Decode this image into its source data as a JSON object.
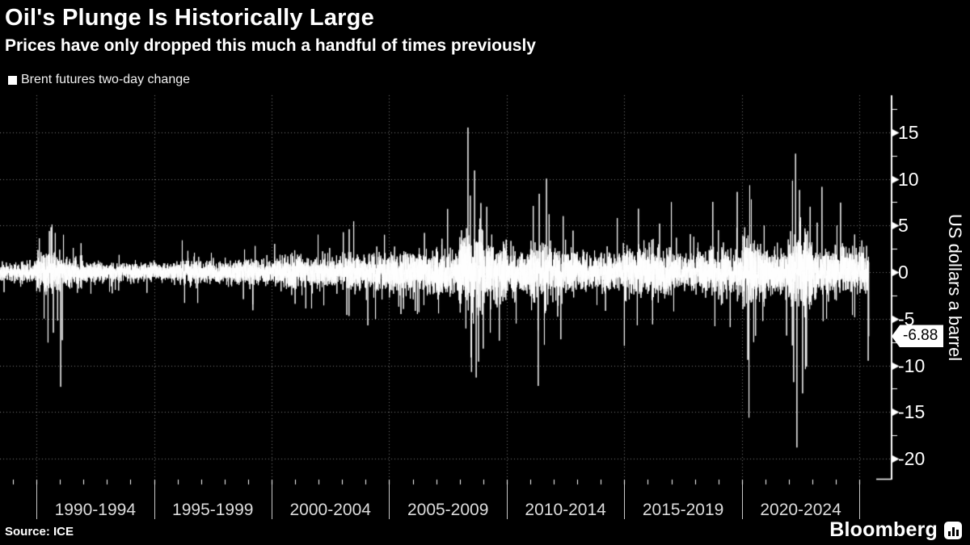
{
  "header": {
    "title": "Oil's Plunge Is Historically Large",
    "subtitle": "Prices have only dropped this much a handful of times previously"
  },
  "legend": {
    "marker": "square-swatch-icon",
    "label": "Brent futures two-day change"
  },
  "y_axis": {
    "label": "US dollars a barrel",
    "last_value_tag": "-6.88",
    "tag_arrow": "left-pointer-icon"
  },
  "footer": {
    "source": "Source: ICE",
    "brand": "Bloomberg",
    "brand_icon": "bar-chart-icon"
  },
  "colors": {
    "background": "#000000",
    "series": "#ffffff",
    "grid": "#787878",
    "axis": "#ffffff",
    "tick_label": "#ffffff",
    "x_label": "#dcdcdc",
    "separator": "#c9c9c9",
    "tag_bg": "#ffffff",
    "tag_text": "#000000"
  },
  "chart_data": {
    "type": "line",
    "title": "Oil's Plunge Is Historically Large",
    "subtitle": "Prices have only dropped this much a handful of times previously",
    "series_name": "Brent futures two-day change",
    "ylabel": "US dollars a barrel",
    "xlabel": "",
    "grid": "dotted",
    "legend_position": "top-left",
    "x_period_labels": [
      "1990-1994",
      "1995-1999",
      "2000-2004",
      "2005-2009",
      "2010-2014",
      "2015-2019",
      "2020-2024"
    ],
    "x_boundaries_years": [
      1990,
      1995,
      2000,
      2005,
      2010,
      2015,
      2020,
      2025
    ],
    "xlim": [
      1988.45,
      2026.33
    ],
    "ylim": [
      -22.16,
      18.96
    ],
    "y_major_ticks": [
      15,
      10,
      5,
      0,
      -5,
      -10,
      -15,
      -20
    ],
    "y_minor_step": 2.5,
    "data_x_start": 1988.45,
    "data_x_end": 2025.4,
    "points_per_year": 260,
    "seed": 20250407,
    "last_value": -6.88,
    "volatility_by_year": {
      "start_year": 1988,
      "sigma": [
        0.45,
        0.5,
        1.0,
        0.75,
        0.5,
        0.45,
        0.5,
        0.45,
        0.65,
        0.5,
        0.62,
        0.62,
        0.85,
        0.8,
        0.72,
        0.95,
        1.0,
        1.15,
        1.1,
        1.15,
        1.95,
        1.5,
        1.05,
        1.45,
        1.25,
        0.95,
        0.9,
        1.3,
        1.3,
        0.8,
        1.05,
        1.1,
        1.65,
        1.05,
        1.85,
        1.2,
        1.1,
        1.1
      ]
    },
    "spikes": [
      [
        1990.55,
        4.4
      ],
      [
        1990.62,
        4.8
      ],
      [
        1990.66,
        5.1
      ],
      [
        1990.72,
        -6.5
      ],
      [
        1990.8,
        4.2
      ],
      [
        1990.9,
        -5.2
      ],
      [
        1991.03,
        -12.3
      ],
      [
        1991.1,
        -7.3
      ],
      [
        1991.15,
        4.0
      ],
      [
        1996.2,
        3.4
      ],
      [
        1996.3,
        -3.3
      ],
      [
        1998.8,
        -2.9
      ],
      [
        1999.3,
        2.8
      ],
      [
        2001.0,
        -3.4
      ],
      [
        2001.7,
        -3.9
      ],
      [
        2003.2,
        -4.6
      ],
      [
        2003.3,
        4.6
      ],
      [
        2004.8,
        4.0
      ],
      [
        2005.5,
        -4.5
      ],
      [
        2006.5,
        4.2
      ],
      [
        2008.35,
        15.5
      ],
      [
        2008.45,
        8.2
      ],
      [
        2008.5,
        -10.7
      ],
      [
        2008.63,
        10.9
      ],
      [
        2008.7,
        -11.3
      ],
      [
        2008.8,
        -9.6
      ],
      [
        2008.9,
        7.4
      ],
      [
        2009.0,
        -8.2
      ],
      [
        2009.15,
        7.0
      ],
      [
        2009.3,
        -6.5
      ],
      [
        2010.4,
        -5.5
      ],
      [
        2011.34,
        -12.2
      ],
      [
        2011.38,
        8.4
      ],
      [
        2011.6,
        -7.8
      ],
      [
        2011.8,
        6.2
      ],
      [
        2012.3,
        -7.2
      ],
      [
        2012.4,
        6.0
      ],
      [
        2014.7,
        5.8
      ],
      [
        2015.0,
        -7.9
      ],
      [
        2015.55,
        -5.7
      ],
      [
        2015.6,
        6.8
      ],
      [
        2016.2,
        -5.6
      ],
      [
        2016.5,
        5.2
      ],
      [
        2017.0,
        7.5
      ],
      [
        2017.1,
        -4.2
      ],
      [
        2018.85,
        -5.8
      ],
      [
        2019.0,
        4.5
      ],
      [
        2019.5,
        -5.9
      ],
      [
        2019.8,
        8.6
      ],
      [
        2020.25,
        -9.4
      ],
      [
        2020.3,
        -15.6
      ],
      [
        2020.33,
        9.3
      ],
      [
        2020.4,
        7.8
      ],
      [
        2020.5,
        -7.5
      ],
      [
        2021.9,
        -6.8
      ],
      [
        2022.15,
        9.8
      ],
      [
        2022.2,
        -11.8
      ],
      [
        2022.28,
        12.7
      ],
      [
        2022.34,
        -18.8
      ],
      [
        2022.45,
        8.8
      ],
      [
        2022.58,
        -13.0
      ],
      [
        2022.7,
        -10.4
      ],
      [
        2022.9,
        7.0
      ],
      [
        2023.2,
        5.3
      ],
      [
        2023.6,
        -5.0
      ],
      [
        2024.7,
        -4.6
      ],
      [
        2025.1,
        3.4
      ],
      [
        2025.37,
        -9.5
      ],
      [
        2025.4,
        -6.88
      ]
    ]
  }
}
